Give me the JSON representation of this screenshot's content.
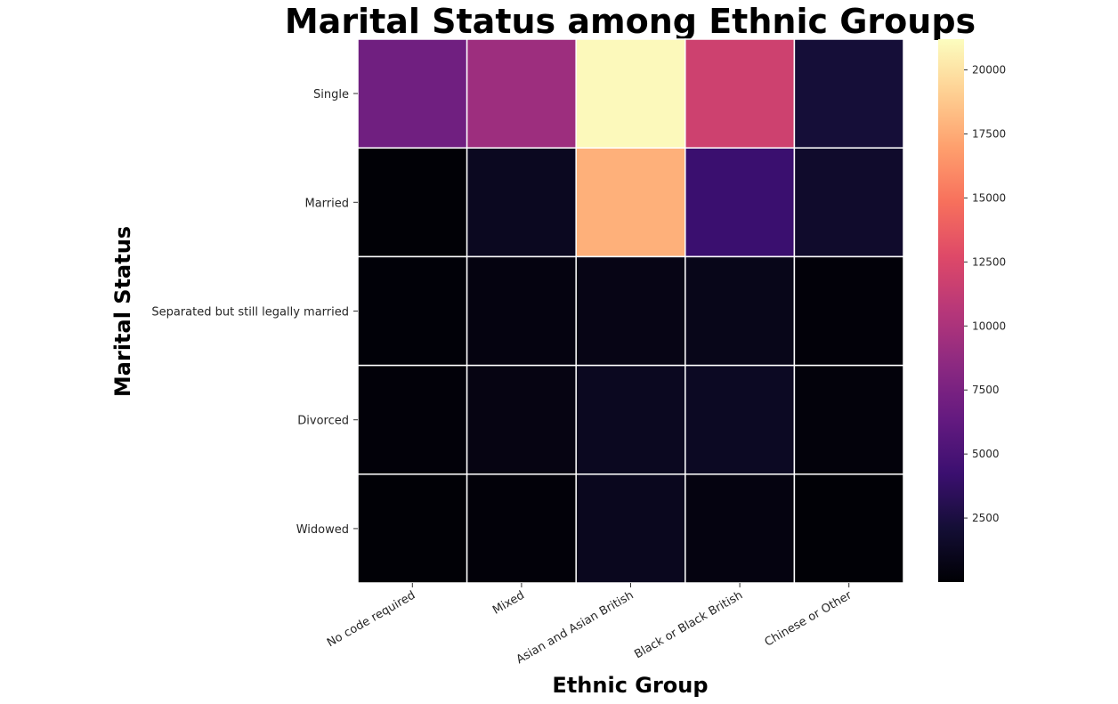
{
  "chart_data": {
    "type": "heatmap",
    "title": "Marital Status among Ethnic Groups",
    "xlabel": "Ethnic Group",
    "ylabel": "Marital Status",
    "x_categories": [
      "No code required",
      "Mixed",
      "Asian and Asian British",
      "Black or Black British",
      "Chinese or Other"
    ],
    "y_categories": [
      "Single",
      "Married",
      "Separated but still legally married",
      "Divorced",
      "Widowed"
    ],
    "values": [
      [
        7000,
        9300,
        21000,
        11800,
        2200
      ],
      [
        100,
        1200,
        17700,
        4200,
        1700
      ],
      [
        150,
        500,
        700,
        900,
        200
      ],
      [
        200,
        600,
        1200,
        1300,
        300
      ],
      [
        100,
        200,
        1100,
        500,
        100
      ]
    ],
    "colormap": "magma",
    "vmin": 0,
    "vmax": 21200,
    "colorbar_ticks": [
      2500,
      5000,
      7500,
      10000,
      12500,
      15000,
      17500,
      20000
    ],
    "grid": false,
    "cell_border_color": "#ffffff"
  }
}
